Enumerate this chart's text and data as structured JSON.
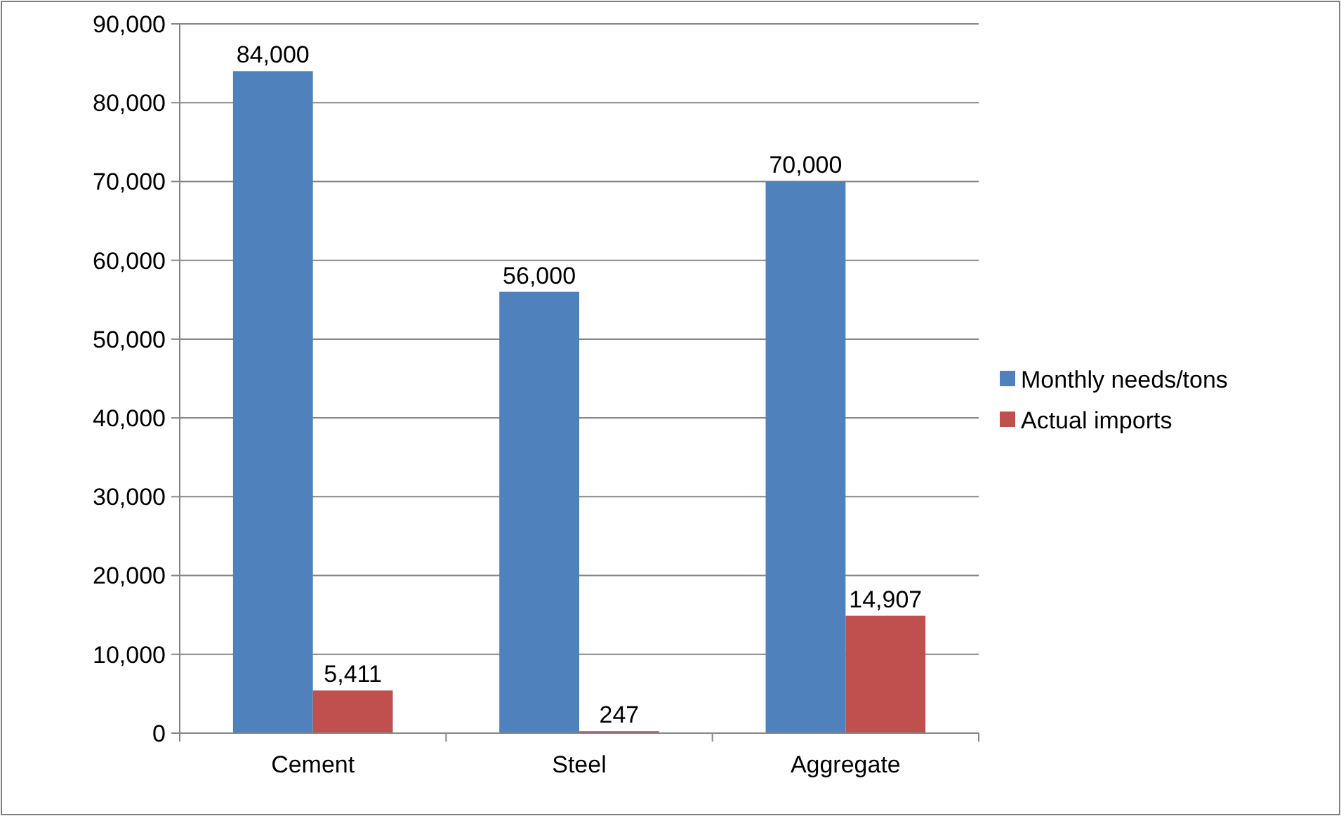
{
  "chart_data": {
    "type": "bar",
    "categories": [
      "Cement",
      "Steel",
      "Aggregate"
    ],
    "series": [
      {
        "name": "Monthly needs/tons",
        "color": "#4f81bd",
        "values": [
          84000,
          56000,
          70000
        ],
        "value_labels": [
          "84,000",
          "56,000",
          "70,000"
        ]
      },
      {
        "name": "Actual imports",
        "color": "#c0504d",
        "values": [
          5411,
          247,
          14907
        ],
        "value_labels": [
          "5,411",
          "247",
          "14,907"
        ]
      }
    ],
    "ylim": [
      0,
      90000
    ],
    "yticks": [
      {
        "value": 0,
        "label": "0"
      },
      {
        "value": 10000,
        "label": "10,000"
      },
      {
        "value": 20000,
        "label": "20,000"
      },
      {
        "value": 30000,
        "label": "30,000"
      },
      {
        "value": 40000,
        "label": "40,000"
      },
      {
        "value": 50000,
        "label": "50,000"
      },
      {
        "value": 60000,
        "label": "60,000"
      },
      {
        "value": 70000,
        "label": "70,000"
      },
      {
        "value": 80000,
        "label": "80,000"
      },
      {
        "value": 90000,
        "label": "90,000"
      }
    ],
    "grid": "y",
    "legend": "right"
  }
}
